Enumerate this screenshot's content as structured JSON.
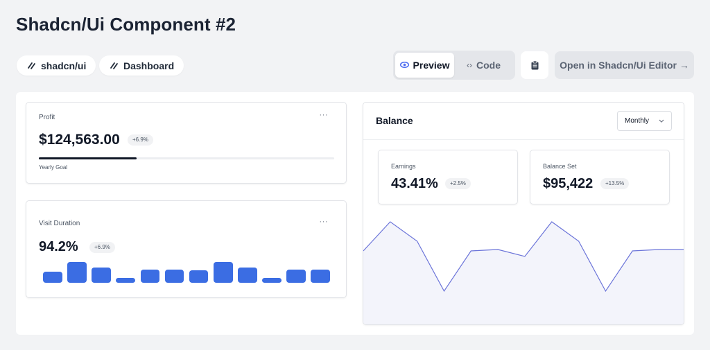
{
  "page": {
    "title": "Shadcn/Ui Component #2"
  },
  "tags": [
    "shadcn/ui",
    "Dashboard"
  ],
  "toolbar": {
    "preview_label": "Preview",
    "code_label": "Code",
    "open_label": "Open in Shadcn/Ui Editor →"
  },
  "profit": {
    "label": "Profit",
    "value": "$124,563.00",
    "change": "+6.9%",
    "progress_label": "Yearly Goal",
    "progress_fraction": 0.33,
    "menu": "···"
  },
  "visit": {
    "label": "Visit Duration",
    "value": "94.2%",
    "change": "+6.9%",
    "menu": "···",
    "bars": [
      0.55,
      1.0,
      0.75,
      0.22,
      0.65,
      0.65,
      0.6,
      1.0,
      0.75,
      0.22,
      0.65,
      0.65
    ]
  },
  "balance": {
    "title": "Balance",
    "period": "Monthly",
    "earnings": {
      "label": "Earnings",
      "value": "43.41%",
      "change": "+2.5%"
    },
    "balance_set": {
      "label": "Balance Set",
      "value": "$95,422",
      "change": "+13.5%"
    },
    "series": [
      0.58,
      1.0,
      0.72,
      0.0,
      0.58,
      0.6,
      0.5,
      1.0,
      0.72,
      0.0,
      0.58,
      0.6
    ]
  },
  "colors": {
    "accent": "#3b6de3",
    "line": "#6b74d9",
    "fill": "#f3f4fb"
  }
}
